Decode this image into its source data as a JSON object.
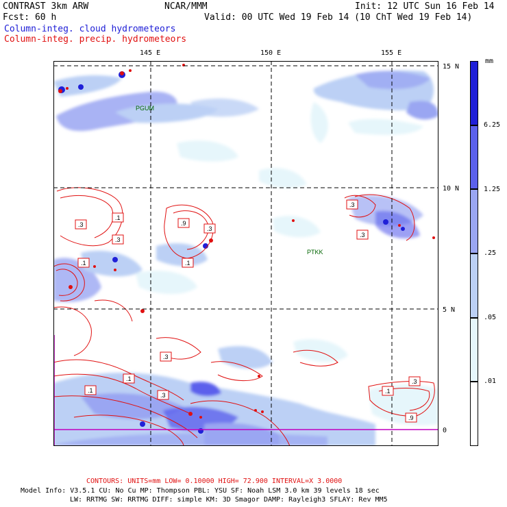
{
  "header": {
    "model": "CONTRAST  3km ARW",
    "center": "NCAR/MMM",
    "init": "Init: 12 UTC Sun 16 Feb 14",
    "fcst": "Fcst:   60 h",
    "valid": "Valid: 00 UTC Wed 19 Feb 14 (10 ChT Wed 19 Feb 14)",
    "field1": "Column-integ. cloud hydrometeors",
    "field2": "Column-integ. precip. hydrometeors"
  },
  "axes": {
    "lon_labels": [
      "145 E",
      "150 E",
      "155 E"
    ],
    "lat_labels": [
      "15 N",
      "10 N",
      "5 N",
      "0"
    ]
  },
  "stations": [
    "PGUM",
    "PTKK"
  ],
  "contour_labels": [
    ".3",
    ".1",
    ".3",
    ".1",
    ".9",
    ".3",
    ".1",
    ".3",
    ".3",
    ".3",
    ".1",
    ".3",
    ".1",
    ".3",
    ".1",
    ".9"
  ],
  "colorbar": {
    "units": "mm",
    "levels": [
      "6.25",
      "1.25",
      ".25",
      ".05",
      ".01"
    ],
    "colors": [
      "#ffffff",
      "#e6f6fb",
      "#bcd0f5",
      "#9aa6f2",
      "#5c61ec",
      "#2020d8"
    ]
  },
  "footer": {
    "contours": "CONTOURS:  UNITS=mm  LOW= 0.10000     HIGH=  72.900     INTERVAL=X  3.0000",
    "info1": "Model Info: V3.5.1    CU: No Cu     MP: Thompson    PBL: YSU      SF: Noah LSM     3.0 km   39 levels   18 sec",
    "info2": "LW: RRTMG   SW: RRTMG   DIFF: simple KM: 3D Smagor DAMP: Rayleigh3  SFLAY: Rev MM5"
  }
}
